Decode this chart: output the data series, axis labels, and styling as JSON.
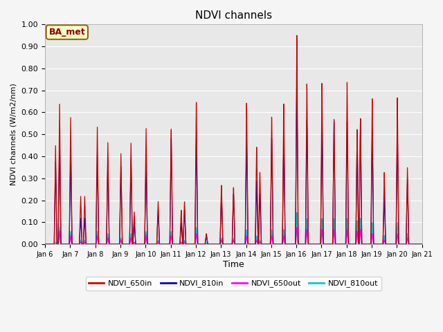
{
  "title": "NDVI channels",
  "ylabel": "NDVI channels (W/m2/nm)",
  "xlabel": "Time",
  "ylim": [
    0.0,
    1.0
  ],
  "yticks": [
    0.0,
    0.1,
    0.2,
    0.3,
    0.4,
    0.5,
    0.6,
    0.7,
    0.8,
    0.9,
    1.0
  ],
  "xtick_labels": [
    "Jan 6",
    "Jan 7",
    "Jan 8",
    "Jan 9",
    "Jan 10",
    "Jan 11",
    "Jan 12",
    "Jan 13",
    "Jan 14",
    "Jan 15",
    "Jan 16",
    "Jan 17",
    "Jan 18",
    "Jan 19",
    "Jan 20",
    "Jan 21"
  ],
  "annotation": "BA_met",
  "color_650in": "#cc0000",
  "color_810in": "#0000cc",
  "color_650out": "#ff00ff",
  "color_810out": "#00cccc",
  "bg_color": "#e8e8e8",
  "grid_color": "#ffffff",
  "legend_labels": [
    "NDVI_650in",
    "NDVI_810in",
    "NDVI_650out",
    "NDVI_810out"
  ],
  "spike_days": [
    6.42,
    6.58,
    7.02,
    7.42,
    7.58,
    8.08,
    8.5,
    9.02,
    9.42,
    9.55,
    10.02,
    10.5,
    11.02,
    11.42,
    11.55,
    12.02,
    12.42,
    13.02,
    13.5,
    14.02,
    14.42,
    14.55,
    15.02,
    15.5,
    16.02,
    16.42,
    17.02,
    17.5,
    18.02,
    18.42,
    18.55,
    19.02,
    19.5,
    20.02,
    20.42
  ],
  "spike_650in": [
    0.45,
    0.64,
    0.58,
    0.22,
    0.22,
    0.54,
    0.47,
    0.42,
    0.47,
    0.15,
    0.54,
    0.2,
    0.54,
    0.16,
    0.2,
    0.67,
    0.05,
    0.28,
    0.27,
    0.67,
    0.46,
    0.34,
    0.6,
    0.66,
    0.98,
    0.75,
    0.75,
    0.58,
    0.75,
    0.53,
    0.58,
    0.67,
    0.33,
    0.67,
    0.35
  ],
  "spike_810in": [
    0.38,
    0.49,
    0.44,
    0.12,
    0.12,
    0.41,
    0.4,
    0.36,
    0.4,
    0.1,
    0.41,
    0.16,
    0.5,
    0.1,
    0.16,
    0.5,
    0.04,
    0.24,
    0.24,
    0.5,
    0.3,
    0.24,
    0.5,
    0.5,
    0.77,
    0.58,
    0.57,
    0.57,
    0.57,
    0.53,
    0.58,
    0.53,
    0.22,
    0.53,
    0.3
  ],
  "spike_650out": [
    0.0,
    0.06,
    0.04,
    0.01,
    0.01,
    0.04,
    0.03,
    0.02,
    0.03,
    0.01,
    0.04,
    0.01,
    0.04,
    0.01,
    0.01,
    0.05,
    0.0,
    0.02,
    0.02,
    0.04,
    0.02,
    0.01,
    0.04,
    0.04,
    0.08,
    0.07,
    0.07,
    0.07,
    0.07,
    0.06,
    0.07,
    0.05,
    0.02,
    0.05,
    0.03
  ],
  "spike_810out": [
    0.01,
    0.08,
    0.06,
    0.02,
    0.02,
    0.06,
    0.05,
    0.03,
    0.05,
    0.01,
    0.06,
    0.02,
    0.06,
    0.01,
    0.02,
    0.08,
    0.01,
    0.03,
    0.03,
    0.07,
    0.04,
    0.02,
    0.07,
    0.07,
    0.15,
    0.12,
    0.12,
    0.12,
    0.12,
    0.11,
    0.12,
    0.1,
    0.04,
    0.1,
    0.05
  ]
}
